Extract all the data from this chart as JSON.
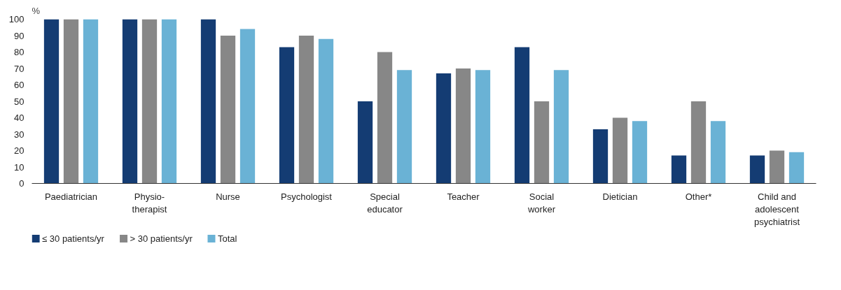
{
  "chart_data": {
    "type": "bar",
    "ylabel": "%",
    "categories": [
      "Paediatrician",
      "Physio-\ntherapist",
      "Nurse",
      "Psychologist",
      "Special\neducator",
      "Teacher",
      "Social\nworker",
      "Dietician",
      "Other*",
      "Child and\nadolescent\npsychiatrist"
    ],
    "series": [
      {
        "name": "≤ 30 patients/yr",
        "color": "#143c73",
        "values": [
          100,
          100,
          100,
          83,
          50,
          67,
          83,
          33,
          17,
          17
        ]
      },
      {
        "name": "> 30 patients/yr",
        "color": "#878787",
        "values": [
          100,
          100,
          90,
          90,
          80,
          70,
          50,
          40,
          50,
          20
        ]
      },
      {
        "name": "Total",
        "color": "#6ab2d5",
        "values": [
          100,
          100,
          94,
          88,
          69,
          69,
          69,
          38,
          38,
          19
        ]
      }
    ],
    "ylim": [
      0,
      100
    ],
    "yticks": [
      0,
      10,
      20,
      30,
      40,
      50,
      60,
      70,
      80,
      90,
      100
    ],
    "grid": false,
    "legend": "bottom left"
  }
}
